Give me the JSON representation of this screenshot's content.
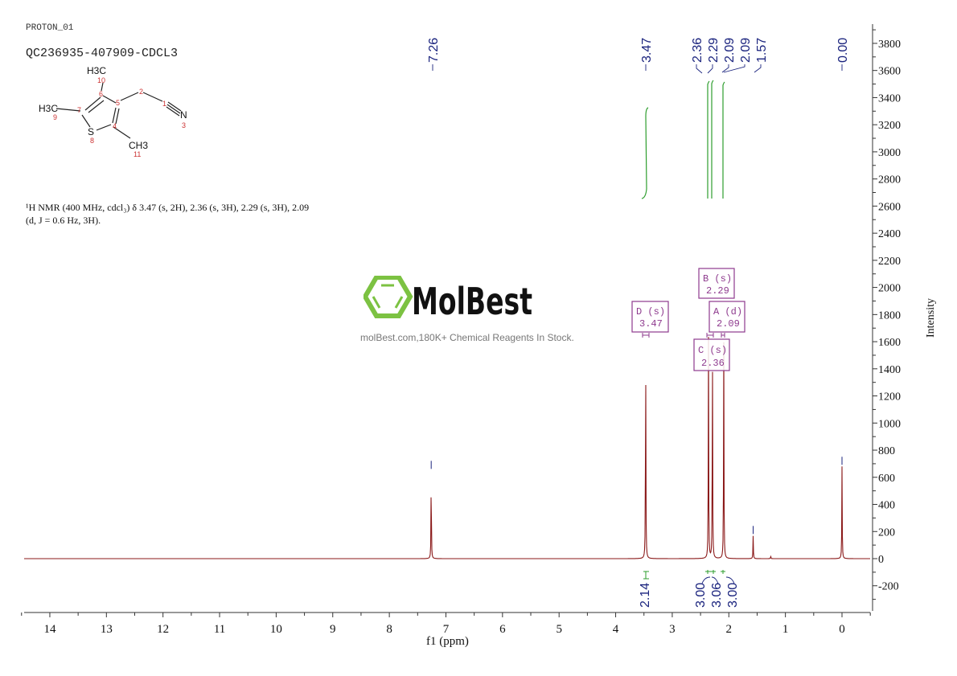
{
  "header": {
    "experiment": "PROTON_01",
    "sample_id": "QC236935-407909-CDCL3"
  },
  "structure": {
    "atoms": [
      {
        "label": "H3C",
        "num": "10"
      },
      {
        "label": "H3C",
        "num": "9"
      },
      {
        "label": "S",
        "num": "8"
      },
      {
        "label": "CH3",
        "num": "11"
      },
      {
        "label": "N",
        "num": "3"
      }
    ],
    "ring_numbers": [
      "6",
      "5",
      "7",
      "4",
      "2",
      "1"
    ]
  },
  "nmr_description": {
    "line1": "¹H NMR (400 MHz, cdcl₃) δ 3.47 (s, 2H), 2.36 (s, 3H), 2.29 (s, 3H), 2.09",
    "line2": "(d, J = 0.6 Hz, 3H)."
  },
  "watermark": {
    "brand": "MolBest",
    "tagline": "molBest.com,180K+ Chemical Reagents In Stock."
  },
  "chart_data": {
    "type": "line",
    "title": "PROTON_01 QC236935-407909-CDCL3",
    "xlabel": "f1 (ppm)",
    "ylabel": "Intensity",
    "xlim": [
      14.5,
      -0.5
    ],
    "ylim": [
      -300,
      3950
    ],
    "x_ticks": [
      14,
      13,
      12,
      11,
      10,
      9,
      8,
      7,
      6,
      5,
      4,
      3,
      2,
      1,
      0
    ],
    "y_ticks": [
      3800,
      3600,
      3400,
      3200,
      3000,
      2800,
      2600,
      2400,
      2200,
      2000,
      1800,
      1600,
      1400,
      1200,
      1000,
      800,
      600,
      400,
      200,
      0,
      -200
    ],
    "peaks": [
      {
        "ppm": 7.26,
        "intensity": 650
      },
      {
        "ppm": 3.47,
        "intensity": 1640
      },
      {
        "ppm": 2.36,
        "intensity": 1680
      },
      {
        "ppm": 2.29,
        "intensity": 1640
      },
      {
        "ppm": 2.09,
        "intensity": 1650
      },
      {
        "ppm": 1.57,
        "intensity": 170
      },
      {
        "ppm": 1.26,
        "intensity": 20
      },
      {
        "ppm": 0.0,
        "intensity": 680
      }
    ],
    "peak_labels": [
      "7.26",
      "3.47",
      "2.36",
      "2.29",
      "2.09",
      "2.09",
      "1.57",
      "0.00"
    ],
    "multiplets": [
      {
        "id": "D",
        "type": "s",
        "shift": "3.47"
      },
      {
        "id": "B",
        "type": "s",
        "shift": "2.29"
      },
      {
        "id": "A",
        "type": "d",
        "shift": "2.09"
      },
      {
        "id": "C",
        "type": "s",
        "shift": "2.36"
      }
    ],
    "integrals": [
      {
        "ppm": 3.47,
        "value": "2.14"
      },
      {
        "ppm": 2.36,
        "value": "3.00"
      },
      {
        "ppm": 2.29,
        "value": "3.06"
      },
      {
        "ppm": 2.09,
        "value": "3.00"
      }
    ],
    "grid": false,
    "colors": {
      "spectrum": "#8b1a1a",
      "integral": "#2e9e2e",
      "peak_label": "#1a237e",
      "multiplet_box": "#8e3a8e"
    }
  }
}
